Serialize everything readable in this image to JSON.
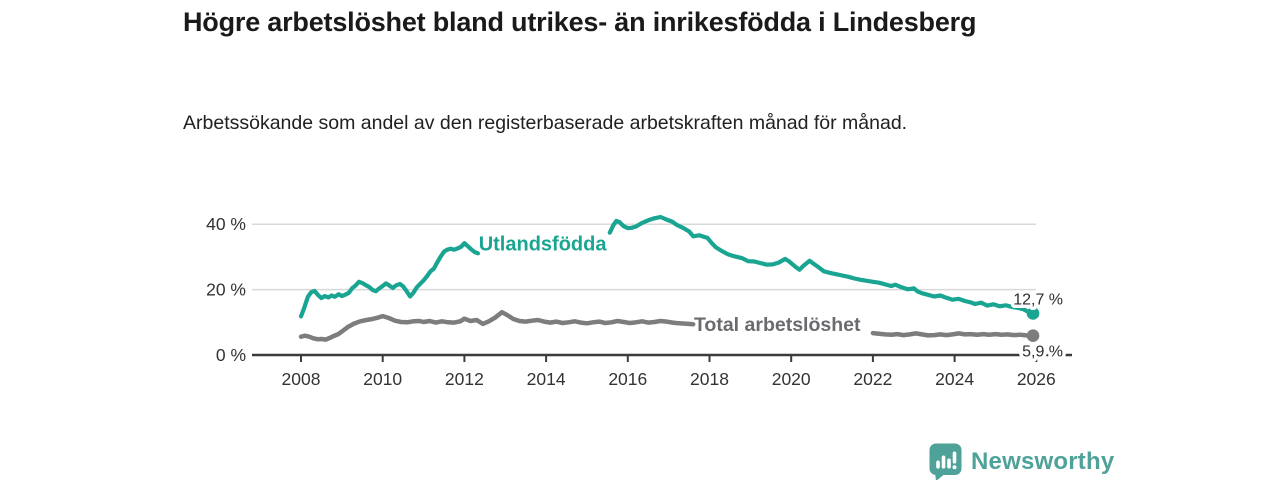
{
  "title": "Högre arbetslöshet bland utrikes- än inrikesfödda i Lindesberg",
  "subtitle": "Arbetssökande som andel av den registerbaserade arbetskraften månad för månad.",
  "footer": {
    "brand": "Newsworthy",
    "brand_color": "#4FA29A",
    "logo_icon": "newsworthy-bubble-barchart-icon"
  },
  "chart_data": {
    "type": "line",
    "title": "Högre arbetslöshet bland utrikes- än inrikesfödda i Lindesberg",
    "subtitle": "Arbetssökande som andel av den registerbaserade arbetskraften månad för månad.",
    "unit": "%",
    "grid": "horizontal-only",
    "legend_position": "inline-labels-on-chart",
    "x_axis": {
      "range": [
        2007.8,
        2026.9
      ],
      "ticks": [
        2008,
        2010,
        2012,
        2014,
        2016,
        2018,
        2020,
        2022,
        2024,
        2026
      ],
      "tick_labels": [
        "2008",
        "2010",
        "2012",
        "2014",
        "2016",
        "2018",
        "2020",
        "2022",
        "2024",
        "2026"
      ]
    },
    "y_axis": {
      "range": [
        0,
        45
      ],
      "ticks": [
        0,
        20,
        40
      ],
      "tick_labels": [
        "0 %",
        "20 %",
        "40 %"
      ]
    },
    "colors": {
      "grid": "#d9d9d9",
      "axis": "#3c3c3c",
      "tick_text": "#333333",
      "value_text": "#2e2e2e"
    },
    "series": [
      {
        "name": "Utlandsfödda",
        "slug": "utlandsfodda",
        "color": "#19a591",
        "label_color": "#19a591",
        "label_pos": {
          "t": 2012.35,
          "v": 31.9
        },
        "label_size": 20,
        "end_value": 12.7,
        "end_label": "12,7 %",
        "stroke_width": 4.2,
        "segments": [
          [
            [
              2008.0,
              11.8
            ],
            [
              2008.08,
              14.5
            ],
            [
              2008.17,
              17.8
            ],
            [
              2008.25,
              19.2
            ],
            [
              2008.33,
              19.6
            ],
            [
              2008.42,
              18.3
            ],
            [
              2008.5,
              17.4
            ],
            [
              2008.58,
              18.0
            ],
            [
              2008.67,
              17.6
            ],
            [
              2008.75,
              18.2
            ],
            [
              2008.83,
              17.8
            ],
            [
              2008.92,
              18.6
            ],
            [
              2009.0,
              18.0
            ],
            [
              2009.08,
              18.4
            ],
            [
              2009.17,
              19.0
            ],
            [
              2009.25,
              20.4
            ],
            [
              2009.33,
              21.2
            ],
            [
              2009.42,
              22.4
            ],
            [
              2009.5,
              22.0
            ],
            [
              2009.58,
              21.4
            ],
            [
              2009.67,
              20.8
            ],
            [
              2009.75,
              19.9
            ],
            [
              2009.83,
              19.5
            ],
            [
              2009.92,
              20.4
            ],
            [
              2010.0,
              21.1
            ],
            [
              2010.08,
              21.9
            ],
            [
              2010.17,
              21.2
            ],
            [
              2010.25,
              20.5
            ],
            [
              2010.33,
              21.3
            ],
            [
              2010.42,
              21.7
            ],
            [
              2010.5,
              21.0
            ],
            [
              2010.58,
              19.6
            ],
            [
              2010.67,
              17.9
            ],
            [
              2010.75,
              19.0
            ],
            [
              2010.83,
              20.6
            ],
            [
              2010.92,
              21.8
            ],
            [
              2011.0,
              22.8
            ],
            [
              2011.08,
              24.0
            ],
            [
              2011.17,
              25.6
            ],
            [
              2011.25,
              26.4
            ],
            [
              2011.33,
              28.2
            ],
            [
              2011.42,
              30.1
            ],
            [
              2011.5,
              31.6
            ],
            [
              2011.58,
              32.2
            ],
            [
              2011.67,
              32.5
            ],
            [
              2011.75,
              32.2
            ],
            [
              2011.83,
              32.6
            ],
            [
              2011.92,
              33.1
            ],
            [
              2012.0,
              34.2
            ],
            [
              2012.08,
              33.3
            ],
            [
              2012.17,
              32.3
            ],
            [
              2012.25,
              31.5
            ],
            [
              2012.33,
              31.1
            ]
          ],
          [
            [
              2015.56,
              37.4
            ],
            [
              2015.65,
              39.8
            ],
            [
              2015.72,
              41.0
            ],
            [
              2015.8,
              40.6
            ],
            [
              2015.9,
              39.4
            ],
            [
              2016.0,
              38.8
            ],
            [
              2016.1,
              38.9
            ],
            [
              2016.2,
              39.3
            ],
            [
              2016.35,
              40.4
            ],
            [
              2016.5,
              41.2
            ],
            [
              2016.65,
              41.8
            ],
            [
              2016.8,
              42.2
            ],
            [
              2016.95,
              41.4
            ],
            [
              2017.1,
              40.7
            ],
            [
              2017.2,
              39.8
            ],
            [
              2017.35,
              38.9
            ],
            [
              2017.5,
              37.8
            ],
            [
              2017.6,
              36.3
            ],
            [
              2017.75,
              36.6
            ],
            [
              2017.85,
              36.2
            ],
            [
              2017.95,
              35.8
            ],
            [
              2018.05,
              34.3
            ],
            [
              2018.15,
              33.0
            ],
            [
              2018.3,
              31.8
            ],
            [
              2018.45,
              30.8
            ],
            [
              2018.6,
              30.2
            ],
            [
              2018.8,
              29.6
            ],
            [
              2018.95,
              28.7
            ],
            [
              2019.1,
              28.6
            ],
            [
              2019.25,
              28.1
            ],
            [
              2019.4,
              27.6
            ],
            [
              2019.55,
              27.7
            ],
            [
              2019.7,
              28.3
            ],
            [
              2019.85,
              29.4
            ],
            [
              2019.95,
              28.6
            ],
            [
              2020.1,
              27.0
            ],
            [
              2020.2,
              26.1
            ],
            [
              2020.3,
              27.3
            ],
            [
              2020.45,
              28.8
            ],
            [
              2020.55,
              27.9
            ],
            [
              2020.65,
              27.0
            ],
            [
              2020.8,
              25.6
            ],
            [
              2020.95,
              25.1
            ],
            [
              2021.1,
              24.7
            ],
            [
              2021.25,
              24.3
            ],
            [
              2021.4,
              23.9
            ],
            [
              2021.55,
              23.4
            ],
            [
              2021.7,
              23.0
            ],
            [
              2021.85,
              22.7
            ],
            [
              2022.0,
              22.4
            ],
            [
              2022.15,
              22.1
            ],
            [
              2022.3,
              21.6
            ],
            [
              2022.45,
              21.1
            ],
            [
              2022.55,
              21.5
            ],
            [
              2022.7,
              20.7
            ],
            [
              2022.85,
              20.1
            ],
            [
              2023.0,
              20.4
            ],
            [
              2023.1,
              19.4
            ],
            [
              2023.2,
              18.9
            ],
            [
              2023.35,
              18.4
            ],
            [
              2023.5,
              17.9
            ],
            [
              2023.65,
              18.2
            ],
            [
              2023.8,
              17.5
            ],
            [
              2023.95,
              16.9
            ],
            [
              2024.1,
              17.2
            ],
            [
              2024.25,
              16.5
            ],
            [
              2024.4,
              16.1
            ],
            [
              2024.5,
              15.6
            ],
            [
              2024.65,
              16.0
            ],
            [
              2024.8,
              15.1
            ],
            [
              2024.95,
              15.5
            ],
            [
              2025.1,
              14.9
            ],
            [
              2025.25,
              15.2
            ],
            [
              2025.4,
              14.7
            ],
            [
              2025.55,
              14.4
            ],
            [
              2025.7,
              13.9
            ],
            [
              2025.8,
              13.2
            ],
            [
              2025.92,
              12.7
            ]
          ]
        ]
      },
      {
        "name": "Total arbetslöshet",
        "slug": "total-arbetsloshet",
        "color": "#7d7d7d",
        "label_color": "#6b6b6f",
        "label_pos": {
          "t": 2017.62,
          "v": 7.3
        },
        "label_size": 19.5,
        "end_value": 5.9,
        "end_label": "5,9 %",
        "stroke_width": 4.5,
        "segments": [
          [
            [
              2008.0,
              5.6
            ],
            [
              2008.1,
              5.9
            ],
            [
              2008.2,
              5.6
            ],
            [
              2008.3,
              5.1
            ],
            [
              2008.42,
              4.8
            ],
            [
              2008.5,
              4.9
            ],
            [
              2008.6,
              4.7
            ],
            [
              2008.7,
              5.2
            ],
            [
              2008.8,
              5.8
            ],
            [
              2008.9,
              6.3
            ],
            [
              2009.0,
              7.2
            ],
            [
              2009.15,
              8.6
            ],
            [
              2009.3,
              9.6
            ],
            [
              2009.45,
              10.3
            ],
            [
              2009.6,
              10.7
            ],
            [
              2009.75,
              11.0
            ],
            [
              2009.9,
              11.5
            ],
            [
              2010.0,
              11.9
            ],
            [
              2010.15,
              11.3
            ],
            [
              2010.3,
              10.5
            ],
            [
              2010.45,
              10.1
            ],
            [
              2010.6,
              10.0
            ],
            [
              2010.75,
              10.3
            ],
            [
              2010.9,
              10.4
            ],
            [
              2011.0,
              10.1
            ],
            [
              2011.15,
              10.4
            ],
            [
              2011.3,
              9.9
            ],
            [
              2011.45,
              10.3
            ],
            [
              2011.6,
              10.0
            ],
            [
              2011.75,
              9.9
            ],
            [
              2011.9,
              10.3
            ],
            [
              2012.0,
              11.1
            ],
            [
              2012.15,
              10.4
            ],
            [
              2012.3,
              10.7
            ],
            [
              2012.45,
              9.5
            ],
            [
              2012.6,
              10.3
            ],
            [
              2012.75,
              11.4
            ],
            [
              2012.92,
              13.1
            ],
            [
              2013.05,
              12.2
            ],
            [
              2013.2,
              11.0
            ],
            [
              2013.35,
              10.4
            ],
            [
              2013.5,
              10.2
            ],
            [
              2013.65,
              10.5
            ],
            [
              2013.8,
              10.7
            ],
            [
              2013.95,
              10.2
            ],
            [
              2014.1,
              9.9
            ],
            [
              2014.25,
              10.2
            ],
            [
              2014.4,
              9.8
            ],
            [
              2014.55,
              10.0
            ],
            [
              2014.7,
              10.3
            ],
            [
              2014.85,
              9.9
            ],
            [
              2015.0,
              9.7
            ],
            [
              2015.15,
              10.0
            ],
            [
              2015.3,
              10.2
            ],
            [
              2015.45,
              9.8
            ],
            [
              2015.6,
              10.0
            ],
            [
              2015.75,
              10.4
            ],
            [
              2015.9,
              10.1
            ],
            [
              2016.05,
              9.8
            ],
            [
              2016.2,
              10.0
            ],
            [
              2016.35,
              10.3
            ],
            [
              2016.5,
              9.9
            ],
            [
              2016.65,
              10.1
            ],
            [
              2016.8,
              10.4
            ],
            [
              2016.95,
              10.2
            ],
            [
              2017.1,
              9.9
            ],
            [
              2017.25,
              9.7
            ],
            [
              2017.4,
              9.6
            ],
            [
              2017.6,
              9.4
            ]
          ],
          [
            [
              2022.0,
              6.7
            ],
            [
              2022.15,
              6.5
            ],
            [
              2022.3,
              6.3
            ],
            [
              2022.45,
              6.2
            ],
            [
              2022.6,
              6.4
            ],
            [
              2022.75,
              6.1
            ],
            [
              2022.9,
              6.3
            ],
            [
              2023.05,
              6.6
            ],
            [
              2023.2,
              6.3
            ],
            [
              2023.35,
              6.0
            ],
            [
              2023.5,
              6.1
            ],
            [
              2023.65,
              6.3
            ],
            [
              2023.8,
              6.1
            ],
            [
              2023.95,
              6.3
            ],
            [
              2024.1,
              6.6
            ],
            [
              2024.25,
              6.3
            ],
            [
              2024.4,
              6.4
            ],
            [
              2024.55,
              6.2
            ],
            [
              2024.7,
              6.4
            ],
            [
              2024.85,
              6.2
            ],
            [
              2025.0,
              6.4
            ],
            [
              2025.15,
              6.2
            ],
            [
              2025.3,
              6.3
            ],
            [
              2025.45,
              6.1
            ],
            [
              2025.6,
              6.2
            ],
            [
              2025.75,
              6.0
            ],
            [
              2025.92,
              5.9
            ]
          ]
        ]
      }
    ]
  }
}
